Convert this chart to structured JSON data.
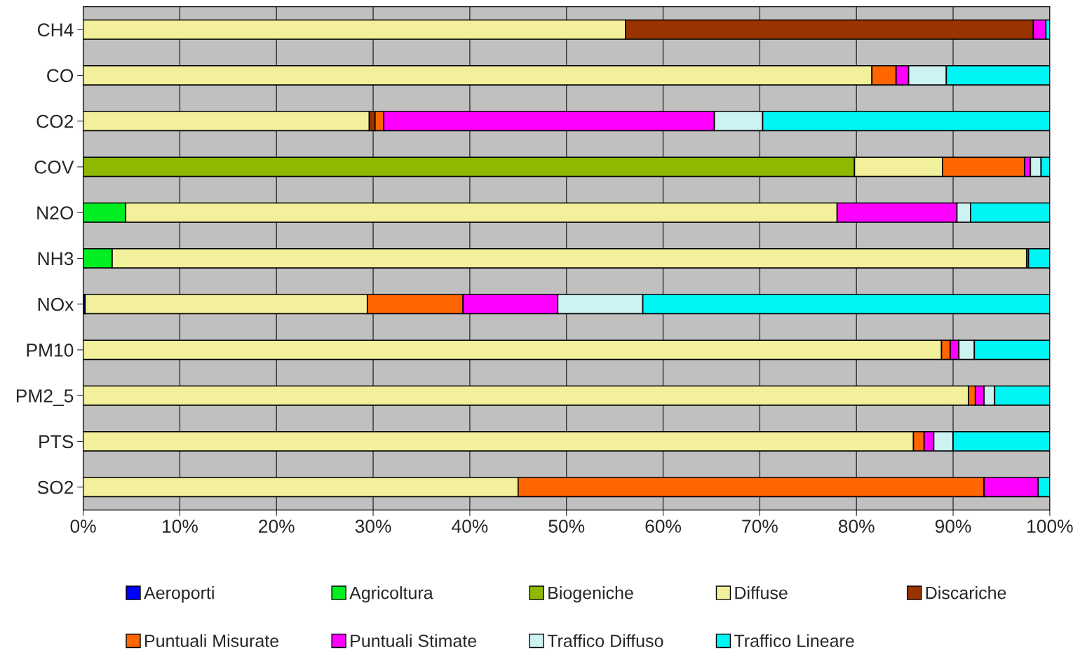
{
  "chart_data": {
    "type": "bar",
    "orientation": "horizontal",
    "stacked": true,
    "categories": [
      "CH4",
      "CO",
      "CO2",
      "COV",
      "N2O",
      "NH3",
      "NOx",
      "PM10",
      "PM2_5",
      "PTS",
      "SO2"
    ],
    "series": [
      {
        "name": "Aeroporti",
        "color": "#0000ff",
        "values": [
          null,
          null,
          null,
          null,
          null,
          null,
          0.2,
          null,
          null,
          null,
          null
        ]
      },
      {
        "name": "Agricoltura",
        "color": "#00ee22",
        "values": [
          null,
          null,
          null,
          null,
          4.4,
          3.0,
          null,
          null,
          null,
          null,
          null
        ]
      },
      {
        "name": "Biogeniche",
        "color": "#8fb800",
        "values": [
          null,
          null,
          null,
          79.8,
          null,
          null,
          null,
          null,
          null,
          null,
          null
        ]
      },
      {
        "name": "Diffuse",
        "color": "#f2f09a",
        "values": [
          56.1,
          81.6,
          29.6,
          9.1,
          73.6,
          94.6,
          29.2,
          88.8,
          91.6,
          85.9,
          45.0
        ]
      },
      {
        "name": "Discariche",
        "color": "#993300",
        "values": [
          42.2,
          null,
          0.6,
          null,
          null,
          null,
          null,
          null,
          null,
          null,
          null
        ]
      },
      {
        "name": "Puntuali Misurate",
        "color": "#ff6600",
        "values": [
          null,
          2.5,
          0.9,
          8.5,
          null,
          0.2,
          9.9,
          0.9,
          0.7,
          1.1,
          48.2
        ]
      },
      {
        "name": "Puntuali Stimate",
        "color": "#ff00ff",
        "values": [
          1.3,
          1.3,
          34.2,
          0.6,
          12.4,
          null,
          9.8,
          0.9,
          0.9,
          1.0,
          5.6
        ]
      },
      {
        "name": "Traffico Diffuso",
        "color": "#ccf2f2",
        "values": [
          null,
          3.9,
          5.0,
          1.1,
          1.4,
          null,
          8.8,
          1.6,
          1.1,
          2.0,
          null
        ]
      },
      {
        "name": "Traffico Lineare",
        "color": "#00f5f5",
        "values": [
          0.4,
          10.7,
          29.7,
          0.9,
          8.2,
          2.2,
          42.1,
          7.8,
          5.7,
          10.0,
          1.2
        ]
      }
    ],
    "xlim": [
      0,
      100
    ],
    "xticks": [
      {
        "value": 0,
        "label": "0%"
      },
      {
        "value": 10,
        "label": "10%"
      },
      {
        "value": 20,
        "label": "20%"
      },
      {
        "value": 30,
        "label": "30%"
      },
      {
        "value": 40,
        "label": "40%"
      },
      {
        "value": 50,
        "label": "50%"
      },
      {
        "value": 60,
        "label": "60%"
      },
      {
        "value": 70,
        "label": "70%"
      },
      {
        "value": 80,
        "label": "80%"
      },
      {
        "value": 90,
        "label": "90%"
      },
      {
        "value": 100,
        "label": "100%"
      }
    ],
    "grid": "x",
    "legend": "bottom"
  }
}
